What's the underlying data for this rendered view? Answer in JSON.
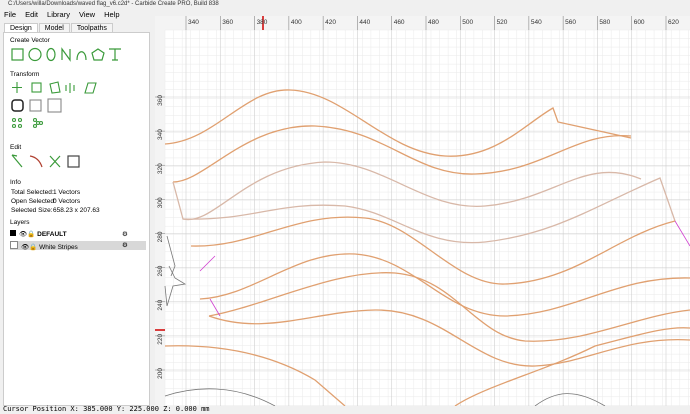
{
  "window": {
    "title": "C:/Users/willa/Downloads/waved flag_v6.c2d* - Carbide Create PRO, Build 838"
  },
  "menu": [
    "File",
    "Edit",
    "Library",
    "View",
    "Help"
  ],
  "tabs": [
    "Design",
    "Model",
    "Toolpaths"
  ],
  "sections": {
    "create_vector": "Create Vector",
    "transform": "Transform",
    "edit": "Edit",
    "info": "Info",
    "layers": "Layers"
  },
  "info": [
    [
      "Total Selected:",
      "1 Vectors"
    ],
    [
      "Open Selected:",
      "0 Vectors"
    ],
    [
      "Selected Size:",
      "658.23 x 207.63"
    ]
  ],
  "layers": [
    "DEFAULT",
    "White Stripes"
  ],
  "rulers": {
    "top": [
      340,
      360,
      380,
      400,
      420,
      440,
      460,
      480,
      500,
      520,
      540,
      560,
      580,
      600,
      620
    ],
    "left": [
      360,
      340,
      320,
      300,
      280,
      260,
      240,
      220,
      200
    ]
  },
  "status": "Cursor Position X: 385.000 Y: 225.000 Z: 0.000 mm"
}
